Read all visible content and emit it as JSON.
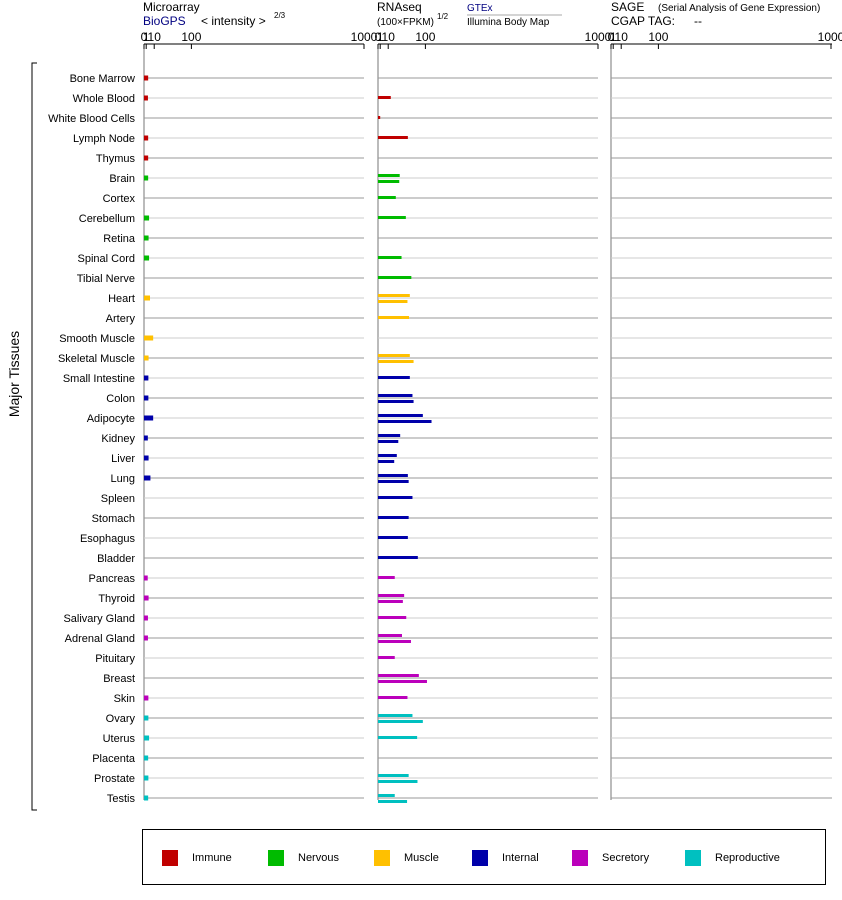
{
  "header": {
    "microarray_title": "Microarray",
    "microarray_source": "BioGPS",
    "microarray_unit": "< intensity >",
    "microarray_exp": "2/3",
    "rnaseq_title": "RNAseq",
    "rnaseq_unit": "(100×FPKM)",
    "rnaseq_exp": "1/2",
    "rnaseq_source1": "GTEx",
    "rnaseq_source2": "Illumina Body Map",
    "sage_title": "SAGE",
    "sage_subtitle": "(Serial Analysis of Gene Expression)",
    "cgap_label": "CGAP TAG:",
    "cgap_value": "--"
  },
  "axis": {
    "ticks": [
      0,
      1,
      10,
      100,
      1000
    ],
    "tick_labels": [
      "0",
      "1",
      "10",
      "100",
      "1000"
    ]
  },
  "y_axis_label": "Major Tissues",
  "colors": {
    "Immune": "#c00000",
    "Nervous": "#00bb00",
    "Muscle": "#ffc000",
    "Internal": "#0000aa",
    "Secretory": "#bb00bb",
    "Reproductive": "#00c0c0"
  },
  "legend": [
    "Immune",
    "Nervous",
    "Muscle",
    "Internal",
    "Secretory",
    "Reproductive"
  ],
  "chart_data": {
    "type": "bar",
    "orientation": "horizontal",
    "x_scale": "power",
    "xlim": [
      0,
      1000
    ],
    "panels": [
      "Microarray",
      "RNAseq",
      "SAGE"
    ],
    "tissues": [
      {
        "name": "Bone Marrow",
        "group": "Immune",
        "microarray": 2.6,
        "rnaseq": []
      },
      {
        "name": "Whole Blood",
        "group": "Immune",
        "microarray": 2.4,
        "rnaseq": [
          14
        ]
      },
      {
        "name": "White Blood Cells",
        "group": "Immune",
        "microarray": null,
        "rnaseq": [
          1
        ]
      },
      {
        "name": "Lymph Node",
        "group": "Immune",
        "microarray": 2.6,
        "rnaseq": [
          50
        ]
      },
      {
        "name": "Thymus",
        "group": "Immune",
        "microarray": 2.6,
        "rnaseq": []
      },
      {
        "name": "Brain",
        "group": "Nervous",
        "microarray": 2.6,
        "rnaseq": [
          31,
          30
        ]
      },
      {
        "name": "Cortex",
        "group": "Nervous",
        "microarray": null,
        "rnaseq": [
          23
        ]
      },
      {
        "name": "Cerebellum",
        "group": "Nervous",
        "microarray": 3.5,
        "rnaseq": [
          45
        ]
      },
      {
        "name": "Retina",
        "group": "Nervous",
        "microarray": 3.0,
        "rnaseq": []
      },
      {
        "name": "Spinal Cord",
        "group": "Nervous",
        "microarray": 3.5,
        "rnaseq": [
          35
        ]
      },
      {
        "name": "Tibial Nerve",
        "group": "Nervous",
        "microarray": null,
        "rnaseq": [
          59
        ]
      },
      {
        "name": "Heart",
        "group": "Muscle",
        "microarray": 4.5,
        "rnaseq": [
          55,
          49
        ]
      },
      {
        "name": "Artery",
        "group": "Muscle",
        "microarray": null,
        "rnaseq": [
          53
        ]
      },
      {
        "name": "Smooth Muscle",
        "group": "Muscle",
        "microarray": 8.5,
        "rnaseq": []
      },
      {
        "name": "Skeletal Muscle",
        "group": "Muscle",
        "microarray": 3.0,
        "rnaseq": [
          55,
          65
        ]
      },
      {
        "name": "Small Intestine",
        "group": "Internal",
        "microarray": 2.8,
        "rnaseq": [
          55
        ]
      },
      {
        "name": "Colon",
        "group": "Internal",
        "microarray": 2.8,
        "rnaseq": [
          62,
          65
        ]
      },
      {
        "name": "Adipocyte",
        "group": "Internal",
        "microarray": 8.5,
        "rnaseq": [
          92,
          120
        ]
      },
      {
        "name": "Kidney",
        "group": "Internal",
        "microarray": 2.3,
        "rnaseq": [
          32,
          28
        ]
      },
      {
        "name": "Liver",
        "group": "Internal",
        "microarray": 3.0,
        "rnaseq": [
          25,
          20
        ]
      },
      {
        "name": "Lung",
        "group": "Internal",
        "microarray": 5.0,
        "rnaseq": [
          50,
          52
        ]
      },
      {
        "name": "Spleen",
        "group": "Internal",
        "microarray": null,
        "rnaseq": [
          62
        ]
      },
      {
        "name": "Stomach",
        "group": "Internal",
        "microarray": null,
        "rnaseq": [
          52
        ]
      },
      {
        "name": "Esophagus",
        "group": "Internal",
        "microarray": null,
        "rnaseq": [
          50
        ]
      },
      {
        "name": "Bladder",
        "group": "Internal",
        "microarray": null,
        "rnaseq": [
          77
        ]
      },
      {
        "name": "Pancreas",
        "group": "Secretory",
        "microarray": 2.2,
        "rnaseq": [
          21
        ]
      },
      {
        "name": "Thyroid",
        "group": "Secretory",
        "microarray": 3.0,
        "rnaseq": [
          41,
          38
        ]
      },
      {
        "name": "Salivary Gland",
        "group": "Secretory",
        "microarray": 2.4,
        "rnaseq": [
          46
        ]
      },
      {
        "name": "Adrenal Gland",
        "group": "Secretory",
        "microarray": 2.4,
        "rnaseq": [
          36,
          58
        ]
      },
      {
        "name": "Pituitary",
        "group": "Secretory",
        "microarray": null,
        "rnaseq": [
          21
        ]
      },
      {
        "name": "Breast",
        "group": "Secretory",
        "microarray": null,
        "rnaseq": [
          80,
          105
        ]
      },
      {
        "name": "Skin",
        "group": "Secretory",
        "microarray": 2.8,
        "rnaseq": [
          49
        ]
      },
      {
        "name": "Ovary",
        "group": "Reproductive",
        "microarray": 2.8,
        "rnaseq": [
          62,
          92
        ]
      },
      {
        "name": "Uterus",
        "group": "Reproductive",
        "microarray": 3.5,
        "rnaseq": [
          75
        ]
      },
      {
        "name": "Placenta",
        "group": "Reproductive",
        "microarray": 2.6,
        "rnaseq": []
      },
      {
        "name": "Prostate",
        "group": "Reproductive",
        "microarray": 2.8,
        "rnaseq": [
          52,
          76
        ]
      },
      {
        "name": "Testis",
        "group": "Reproductive",
        "microarray": 2.6,
        "rnaseq": [
          21,
          48
        ]
      }
    ],
    "sage": []
  }
}
